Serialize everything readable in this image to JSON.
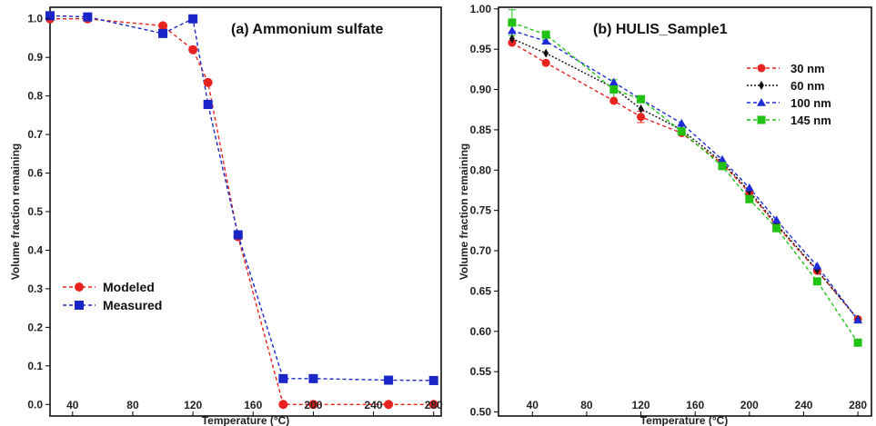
{
  "chart_data": [
    {
      "type": "line",
      "title": "(a) Ammonium sulfate",
      "xlabel": "Temperature (°C)",
      "ylabel": "Volume fraction remaining",
      "xlim": [
        25,
        285
      ],
      "ylim": [
        -0.03,
        1.03
      ],
      "xticks": [
        40,
        80,
        120,
        160,
        200,
        240,
        280
      ],
      "yticks": [
        0.0,
        0.1,
        0.2,
        0.3,
        0.4,
        0.5,
        0.6,
        0.7,
        0.8,
        0.9,
        1.0
      ],
      "legend_position": "bottom-left",
      "grid": false,
      "series": [
        {
          "name": "Modeled",
          "color": "#e8221e",
          "marker": "circle",
          "x": [
            25,
            50,
            100,
            120,
            130,
            150,
            180,
            200,
            250,
            280
          ],
          "y": [
            1.0,
            1.0,
            0.982,
            0.92,
            0.835,
            0.435,
            0.0,
            0.0,
            0.0,
            0.0
          ]
        },
        {
          "name": "Measured",
          "color": "#1a25c8",
          "marker": "square",
          "x": [
            25,
            50,
            100,
            120,
            130,
            150,
            180,
            200,
            250,
            280
          ],
          "y": [
            1.008,
            1.005,
            0.962,
            1.0,
            0.778,
            0.44,
            0.067,
            0.067,
            0.063,
            0.062
          ]
        }
      ]
    },
    {
      "type": "line",
      "title": "(b) HULIS_Sample1",
      "xlabel": "Temperature (°C)",
      "ylabel": "Volume fraction  remaining",
      "xlim": [
        15,
        290
      ],
      "ylim": [
        0.495,
        1.002
      ],
      "xticks": [
        40,
        80,
        120,
        160,
        200,
        240,
        280
      ],
      "yticks": [
        0.5,
        0.55,
        0.6,
        0.65,
        0.7,
        0.75,
        0.8,
        0.85,
        0.9,
        0.95,
        1.0
      ],
      "legend_position": "top-right",
      "grid": false,
      "series": [
        {
          "name": "30 nm",
          "color": "#e8221e",
          "marker": "circle",
          "x": [
            25,
            50,
            100,
            120,
            150,
            180,
            200,
            220,
            250,
            280
          ],
          "y": [
            0.958,
            0.933,
            0.886,
            0.866,
            0.846,
            0.808,
            0.772,
            0.731,
            0.675,
            0.615
          ]
        },
        {
          "name": "60 nm",
          "color": "#111111",
          "marker": "diamond",
          "x": [
            25,
            50,
            100,
            120,
            150,
            180,
            200,
            220,
            250,
            280
          ],
          "y": [
            0.963,
            0.945,
            0.902,
            0.876,
            0.85,
            0.81,
            0.774,
            0.733,
            0.676,
            0.615
          ]
        },
        {
          "name": "100 nm",
          "color": "#1f2bd6",
          "marker": "triangle",
          "x": [
            25,
            50,
            100,
            120,
            150,
            180,
            200,
            220,
            250,
            280
          ],
          "y": [
            0.973,
            0.96,
            0.909,
            0.888,
            0.858,
            0.813,
            0.778,
            0.738,
            0.681,
            0.614
          ]
        },
        {
          "name": "145 nm",
          "color": "#22c214",
          "marker": "square",
          "x": [
            25,
            50,
            100,
            120,
            150,
            180,
            200,
            220,
            250,
            280
          ],
          "y": [
            0.983,
            0.968,
            0.9,
            0.888,
            0.848,
            0.805,
            0.764,
            0.728,
            0.662,
            0.586
          ]
        }
      ]
    }
  ]
}
